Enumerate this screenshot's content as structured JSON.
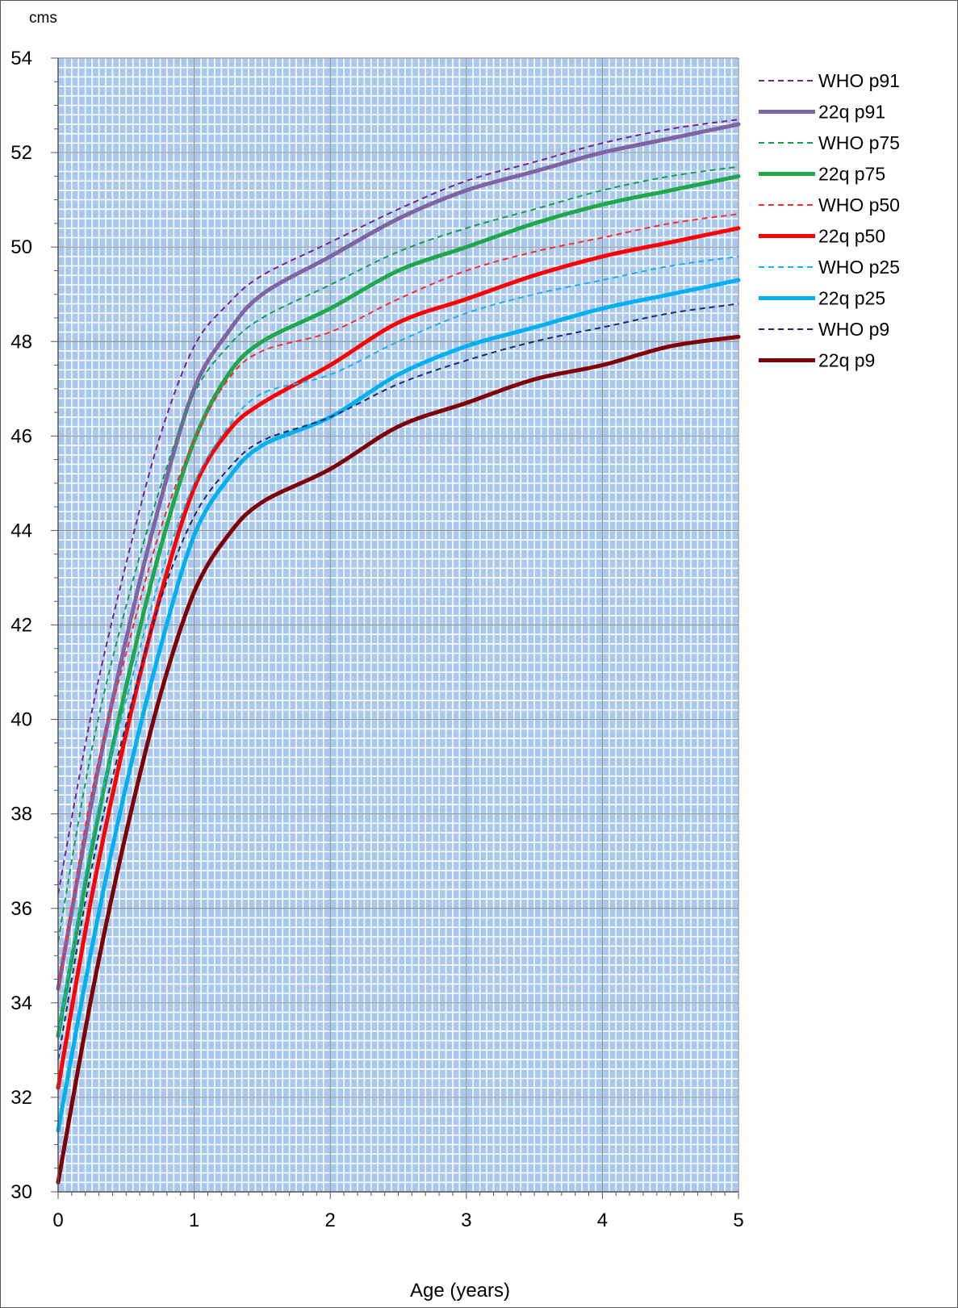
{
  "chart_data": {
    "type": "line",
    "unit_label": "cms",
    "xlabel": "Age (years)",
    "ylabel": "",
    "xlim": [
      0,
      5
    ],
    "ylim": [
      30,
      54
    ],
    "x_ticks": [
      "0",
      "1",
      "2",
      "3",
      "4",
      "5"
    ],
    "y_ticks": [
      "30",
      "32",
      "34",
      "36",
      "38",
      "40",
      "42",
      "44",
      "46",
      "48",
      "50",
      "52",
      "54"
    ],
    "grid": true,
    "minor_grid": true,
    "plot_background": "#a8c8f0",
    "legend_position": "right",
    "x": [
      0,
      0.25,
      0.5,
      0.75,
      1,
      1.25,
      1.5,
      2,
      2.5,
      3,
      3.5,
      4,
      4.5,
      5
    ],
    "series": [
      {
        "name": "WHO p91",
        "color": "#7a1f8c",
        "style": "dashed",
        "values": [
          36.3,
          40.2,
          43.3,
          46.0,
          47.9,
          48.8,
          49.4,
          50.1,
          50.8,
          51.4,
          51.8,
          52.2,
          52.5,
          52.7
        ]
      },
      {
        "name": "22q p91",
        "color": "#8064a2",
        "style": "solid",
        "values": [
          34.3,
          38.3,
          41.7,
          44.6,
          47.0,
          48.2,
          49.0,
          49.8,
          50.6,
          51.2,
          51.6,
          52.0,
          52.3,
          52.6
        ]
      },
      {
        "name": "WHO p75",
        "color": "#10a04a",
        "style": "dashed",
        "values": [
          35.3,
          39.4,
          42.4,
          44.9,
          46.9,
          47.9,
          48.5,
          49.2,
          49.9,
          50.4,
          50.8,
          51.2,
          51.5,
          51.7
        ]
      },
      {
        "name": "22q p75",
        "color": "#1fa84a",
        "style": "solid",
        "values": [
          33.3,
          37.3,
          40.7,
          43.6,
          45.9,
          47.3,
          48.0,
          48.7,
          49.5,
          50.0,
          50.5,
          50.9,
          51.2,
          51.5
        ]
      },
      {
        "name": "WHO p50",
        "color": "#ff2a2a",
        "style": "dashed",
        "values": [
          34.3,
          38.5,
          41.4,
          44.0,
          45.9,
          47.2,
          47.8,
          48.2,
          48.9,
          49.5,
          49.9,
          50.2,
          50.5,
          50.7
        ]
      },
      {
        "name": "22q p50",
        "color": "#ff0000",
        "style": "solid",
        "values": [
          32.2,
          36.3,
          39.7,
          42.6,
          44.9,
          46.1,
          46.7,
          47.5,
          48.4,
          48.9,
          49.4,
          49.8,
          50.1,
          50.4
        ]
      },
      {
        "name": "WHO p25",
        "color": "#1ab0e8",
        "style": "dashed",
        "values": [
          33.3,
          37.5,
          40.4,
          43.0,
          45.0,
          46.2,
          46.9,
          47.3,
          48.0,
          48.6,
          49.0,
          49.3,
          49.6,
          49.8
        ]
      },
      {
        "name": "22q p25",
        "color": "#00b0f0",
        "style": "solid",
        "values": [
          31.3,
          35.2,
          38.6,
          41.5,
          43.9,
          45.1,
          45.8,
          46.4,
          47.3,
          47.9,
          48.3,
          48.7,
          49.0,
          49.3
        ]
      },
      {
        "name": "WHO p9",
        "color": "#1a2a6c",
        "style": "dashed",
        "values": [
          32.8,
          36.9,
          39.9,
          42.5,
          44.3,
          45.3,
          45.9,
          46.4,
          47.1,
          47.6,
          48.0,
          48.3,
          48.6,
          48.8
        ]
      },
      {
        "name": "22q p9",
        "color": "#7f0000",
        "style": "solid",
        "values": [
          30.2,
          34.2,
          37.6,
          40.5,
          42.7,
          43.9,
          44.6,
          45.3,
          46.2,
          46.7,
          47.2,
          47.5,
          47.9,
          48.1
        ]
      }
    ]
  }
}
